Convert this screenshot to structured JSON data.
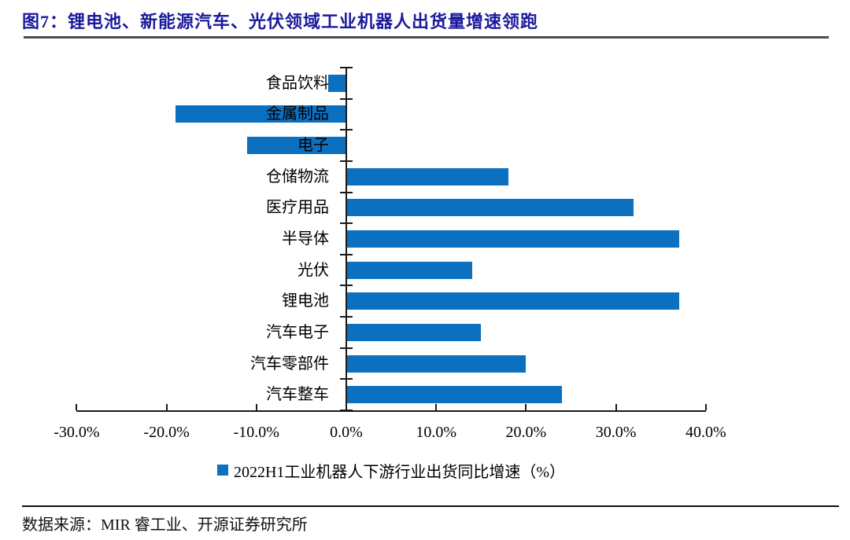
{
  "header": {
    "title": "图7：锂电池、新能源汽车、光伏领域工业机器人出货量增速领跑"
  },
  "chart_data": {
    "type": "bar",
    "orientation": "horizontal",
    "title": "图7：锂电池、新能源汽车、光伏领域工业机器人出货量增速领跑",
    "categories": [
      "食品饮料",
      "金属制品",
      "电子",
      "仓储物流",
      "医疗用品",
      "半导体",
      "光伏",
      "锂电池",
      "汽车电子",
      "汽车零部件",
      "汽车整车"
    ],
    "series": [
      {
        "name": "2022H1工业机器人下游行业出货同比增速（%）",
        "values": [
          -2.0,
          -19.0,
          -11.0,
          18.0,
          32.0,
          37.0,
          14.0,
          37.0,
          15.0,
          20.0,
          24.0
        ]
      }
    ],
    "unit": "%",
    "xlim": [
      -30,
      40
    ],
    "x_ticks": [
      -30,
      -20,
      -10,
      0,
      10,
      20,
      30,
      40
    ],
    "x_tick_labels": [
      "-30.0%",
      "-20.0%",
      "-10.0%",
      "0.0%",
      "10.0%",
      "20.0%",
      "30.0%",
      "40.0%"
    ],
    "legend": {
      "label": "2022H1工业机器人下游行业出货同比增速（%）",
      "position": "bottom"
    },
    "bar_color": "#0C70C0",
    "grid": false
  },
  "footer": {
    "source": "数据来源：MIR 睿工业、开源证券研究所"
  }
}
